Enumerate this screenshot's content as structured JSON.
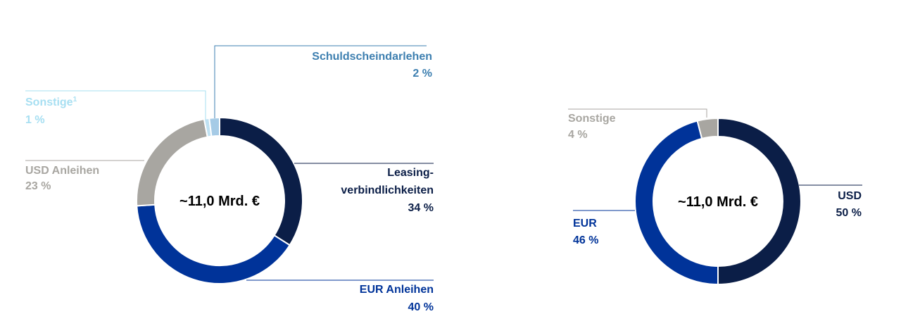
{
  "chart_data": [
    {
      "type": "pie",
      "variant": "donut",
      "center_label": "~11,0 Mrd. €",
      "categories": [
        "Leasing-verbindlichkeiten",
        "EUR Anleihen",
        "USD Anleihen",
        "Sonstige",
        "Schuldscheindarlehen"
      ],
      "values": [
        34,
        40,
        23,
        1,
        2
      ],
      "unit": "%",
      "colors": [
        "#0b1e47",
        "#003399",
        "#a8a6a1",
        "#bfe1f2",
        "#a6cbe6"
      ],
      "labels": [
        {
          "lines": [
            "Leasing-",
            "verbindlichkeiten"
          ],
          "value": "34 %",
          "color": "#0b1e47"
        },
        {
          "lines": [
            "EUR Anleihen"
          ],
          "value": "40 %",
          "color": "#003399"
        },
        {
          "lines": [
            "USD Anleihen"
          ],
          "value": "23 %",
          "color": "#a8a6a1"
        },
        {
          "lines": [
            "Sonstige",
            "1"
          ],
          "value": "1 %",
          "color": "#a7dff2"
        },
        {
          "lines": [
            "Schuldscheindarlehen"
          ],
          "value": "2 %",
          "color": "#3d7fb0"
        }
      ]
    },
    {
      "type": "pie",
      "variant": "donut",
      "center_label": "~11,0 Mrd. €",
      "categories": [
        "USD",
        "EUR",
        "Sonstige"
      ],
      "values": [
        50,
        46,
        4
      ],
      "unit": "%",
      "colors": [
        "#0b1e47",
        "#003399",
        "#a8a6a1"
      ],
      "labels": [
        {
          "lines": [
            "USD"
          ],
          "value": "50 %",
          "color": "#0b1e47"
        },
        {
          "lines": [
            "EUR"
          ],
          "value": "46 %",
          "color": "#003399"
        },
        {
          "lines": [
            "Sonstige"
          ],
          "value": "4 %",
          "color": "#a8a6a1"
        }
      ]
    }
  ]
}
